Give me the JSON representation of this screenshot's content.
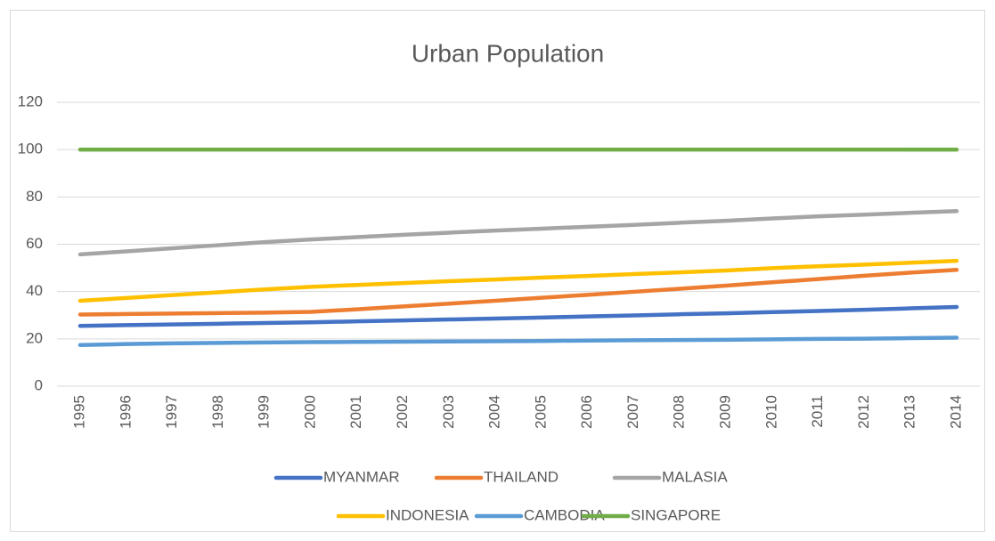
{
  "chart_data": {
    "type": "line",
    "title": "Urban Population",
    "categories": [
      "1995",
      "1996",
      "1997",
      "1998",
      "1999",
      "2000",
      "2001",
      "2002",
      "2003",
      "2004",
      "2005",
      "2006",
      "2007",
      "2008",
      "2009",
      "2010",
      "2011",
      "2012",
      "2013",
      "2014"
    ],
    "series": [
      {
        "name": "MYANMAR",
        "color": "#4472c4",
        "values": [
          25.5,
          25.8,
          26.1,
          26.4,
          26.7,
          27.0,
          27.4,
          27.8,
          28.2,
          28.6,
          29.0,
          29.5,
          29.9,
          30.4,
          30.8,
          31.3,
          31.8,
          32.3,
          32.9,
          33.5
        ]
      },
      {
        "name": "THAILAND",
        "color": "#ed7d31",
        "values": [
          30.3,
          30.5,
          30.7,
          30.9,
          31.1,
          31.4,
          32.5,
          33.7,
          34.9,
          36.1,
          37.4,
          38.6,
          39.9,
          41.2,
          42.5,
          43.9,
          45.3,
          46.7,
          48.0,
          49.2
        ]
      },
      {
        "name": "MALASIA",
        "color": "#a5a5a5",
        "values": [
          55.7,
          57.0,
          58.3,
          59.6,
          60.9,
          62.0,
          63.0,
          64.0,
          64.9,
          65.8,
          66.6,
          67.4,
          68.2,
          69.1,
          69.9,
          70.9,
          71.8,
          72.5,
          73.3,
          74.0
        ]
      },
      {
        "name": "INDONESIA",
        "color": "#ffc000",
        "values": [
          36.1,
          37.3,
          38.5,
          39.7,
          40.9,
          42.0,
          42.8,
          43.6,
          44.4,
          45.1,
          45.9,
          46.6,
          47.4,
          48.1,
          48.9,
          49.9,
          50.7,
          51.4,
          52.2,
          53.0
        ]
      },
      {
        "name": "CAMBODIA",
        "color": "#5b9bd5",
        "values": [
          17.4,
          17.8,
          18.1,
          18.3,
          18.5,
          18.6,
          18.7,
          18.8,
          18.9,
          19.0,
          19.1,
          19.3,
          19.4,
          19.5,
          19.6,
          19.8,
          20.0,
          20.1,
          20.3,
          20.5
        ]
      },
      {
        "name": "SINGAPORE",
        "color": "#70ad47",
        "values": [
          100,
          100,
          100,
          100,
          100,
          100,
          100,
          100,
          100,
          100,
          100,
          100,
          100,
          100,
          100,
          100,
          100,
          100,
          100,
          100
        ]
      }
    ],
    "ylim": [
      0,
      120
    ],
    "yticks": [
      0,
      20,
      40,
      60,
      80,
      100,
      120
    ],
    "grid": true,
    "legend": "bottom"
  }
}
